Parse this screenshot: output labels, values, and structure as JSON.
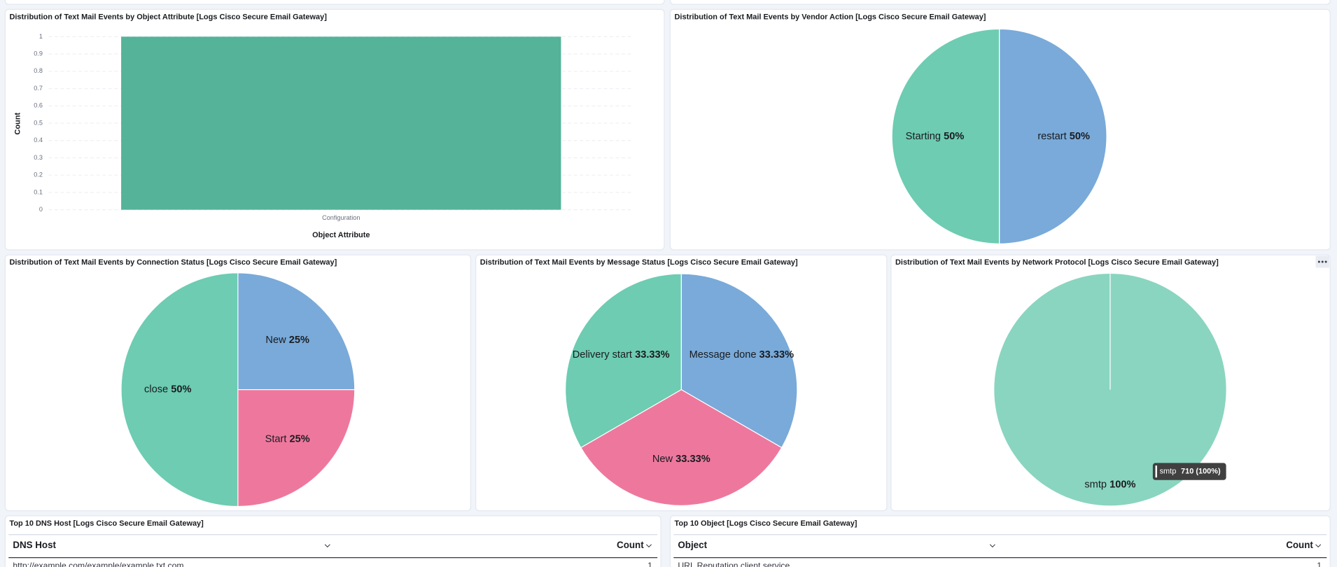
{
  "chart_data": [
    {
      "type": "bar",
      "title": "Distribution of Text Mail Events by Object Attribute [Logs Cisco Secure Email Gateway]",
      "categories": [
        "Configuration"
      ],
      "values": [
        1
      ],
      "color": "#54b399",
      "ylim": [
        0,
        1
      ],
      "yticks": [
        0,
        0.1,
        0.2,
        0.3,
        0.4,
        0.5,
        0.6,
        0.7,
        0.8,
        0.9,
        1
      ],
      "grid": true,
      "xlabel": "Object Attribute",
      "ylabel": "Count"
    },
    {
      "type": "pie",
      "title": "Distribution of Text Mail Events by Vendor Action [Logs Cisco Secure Email Gateway]",
      "categories": [
        "restart",
        "Starting"
      ],
      "values": [
        50,
        50
      ],
      "value_labels": [
        "50%",
        "50%"
      ],
      "colors": [
        "#79aad9",
        "#6dccb1"
      ]
    },
    {
      "type": "pie",
      "title": "Distribution of Text Mail Events by Connection Status [Logs Cisco Secure Email Gateway]",
      "categories": [
        "New",
        "Start",
        "close"
      ],
      "values": [
        25,
        25,
        50
      ],
      "value_labels": [
        "25%",
        "25%",
        "50%"
      ],
      "colors": [
        "#79aad9",
        "#ee789d",
        "#6dccb1"
      ]
    },
    {
      "type": "pie",
      "title": "Distribution of Text Mail Events by Message Status [Logs Cisco Secure Email Gateway]",
      "categories": [
        "Message done",
        "New",
        "Delivery start"
      ],
      "values": [
        33.33,
        33.33,
        33.33
      ],
      "value_labels": [
        "33.33%",
        "33.33%",
        "33.33%"
      ],
      "colors": [
        "#79aad9",
        "#ee789d",
        "#6dccb1"
      ]
    },
    {
      "type": "pie",
      "title": "Distribution of Text Mail Events by Network Protocol [Logs Cisco Secure Email Gateway]",
      "categories": [
        "smtp"
      ],
      "values": [
        100
      ],
      "value_labels": [
        "100%"
      ],
      "colors": [
        "#8ad5bf"
      ],
      "tooltip": {
        "name": "smtp",
        "text": "710 (100%)"
      }
    }
  ],
  "tables": [
    {
      "title": "Top 10 DNS Host [Logs Cisco Secure Email Gateway]",
      "columns": [
        "DNS Host",
        "Count"
      ],
      "rows": [
        [
          "http://example.com/example/example.txt.com",
          1
        ]
      ]
    },
    {
      "title": "Top 10 Object [Logs Cisco Secure Email Gateway]",
      "columns": [
        "Object",
        "Count"
      ],
      "rows": [
        [
          "URL Reputation client service",
          1
        ]
      ]
    }
  ]
}
